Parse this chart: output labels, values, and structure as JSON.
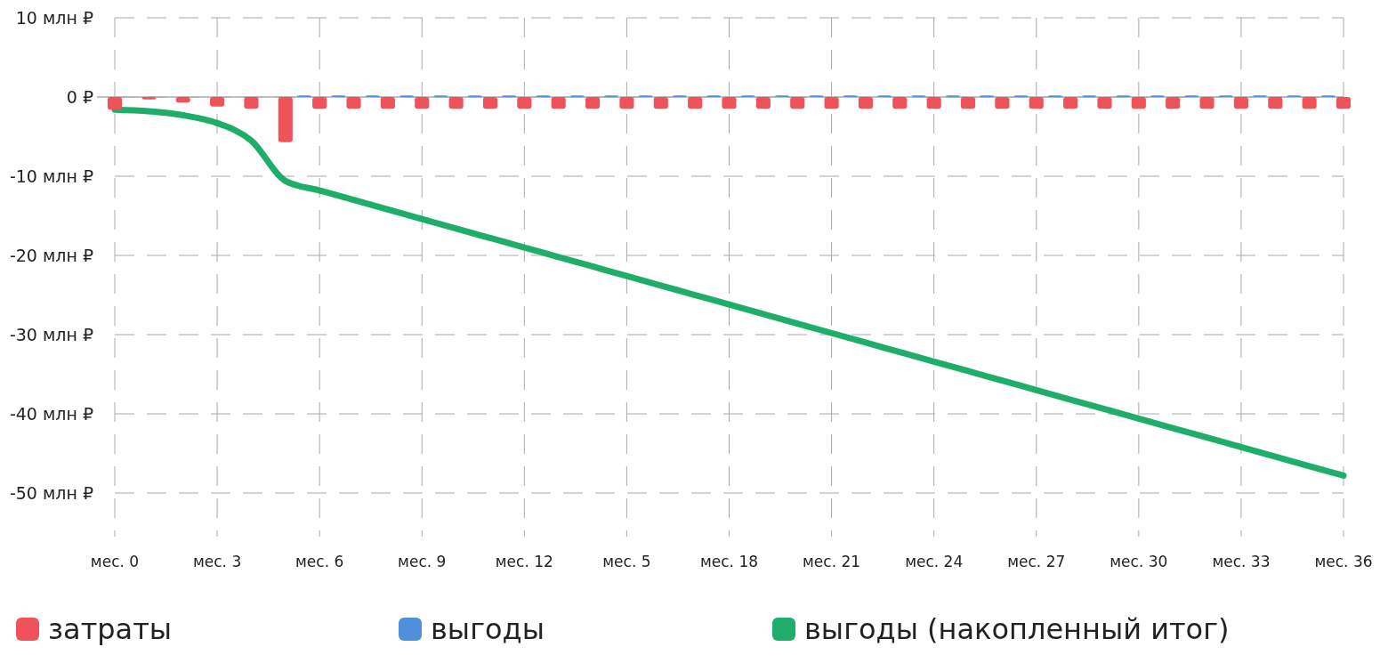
{
  "chart_data": {
    "type": "bar",
    "categories": [
      "мес. 0",
      null,
      null,
      "мес. 3",
      null,
      null,
      "мес. 6",
      null,
      null,
      "мес. 9",
      null,
      null,
      "мес. 12",
      null,
      null,
      "мес. 5",
      null,
      null,
      "мес. 18",
      null,
      null,
      "мес. 21",
      null,
      null,
      "мес. 24",
      null,
      null,
      "мес. 27",
      null,
      null,
      "мес. 30",
      null,
      null,
      "мес. 33",
      null,
      null,
      "мес. 36"
    ],
    "series": [
      {
        "name": "затраты",
        "color": "#f0525a",
        "values": [
          -1.6,
          -0.3,
          -0.7,
          -1.2,
          -1.5,
          -5.7,
          -1.5,
          -1.5,
          -1.5,
          -1.5,
          -1.5,
          -1.5,
          -1.5,
          -1.5,
          -1.5,
          -1.5,
          -1.5,
          -1.5,
          -1.5,
          -1.5,
          -1.5,
          -1.5,
          -1.5,
          -1.5,
          -1.5,
          -1.5,
          -1.5,
          -1.5,
          -1.5,
          -1.5,
          -1.5,
          -1.5,
          -1.5,
          -1.5,
          -1.5,
          -1.5,
          -1.5
        ]
      },
      {
        "name": "выгоды",
        "color": "#4f8fdc",
        "values": [
          null,
          null,
          null,
          null,
          null,
          null,
          0.2,
          0.2,
          0.2,
          0.2,
          0.2,
          0.2,
          0.2,
          0.2,
          0.2,
          0.2,
          0.2,
          0.2,
          0.2,
          0.2,
          0.2,
          0.2,
          0.2,
          0.2,
          0.2,
          0.2,
          0.2,
          0.2,
          0.2,
          0.2,
          0.2,
          0.2,
          0.2,
          0.2,
          0.2,
          0.2,
          0.2
        ]
      },
      {
        "name": "выгоды (накопленный итог)",
        "type": "line",
        "color": "#1fad6a",
        "values": [
          -1.6,
          -1.8,
          -2.3,
          -3.3,
          -5.5,
          -10.6,
          -11.8,
          -13.0,
          -14.2,
          -15.4,
          -16.6,
          -17.8,
          -19.0,
          -20.2,
          -21.4,
          -22.6,
          -23.8,
          -25.0,
          -26.2,
          -27.4,
          -28.6,
          -29.8,
          -31.0,
          -32.2,
          -33.4,
          -34.6,
          -35.8,
          -37.0,
          -38.2,
          -39.4,
          -40.6,
          -41.8,
          -43.0,
          -44.2,
          -45.4,
          -46.6,
          -47.8
        ]
      }
    ],
    "ylim": [
      -55.5,
      10
    ],
    "yticks": [
      {
        "value": 10,
        "label": "10 млн ₽"
      },
      {
        "value": 0,
        "label": "0 ₽"
      },
      {
        "value": -10,
        "label": "-10 млн ₽"
      },
      {
        "value": -20,
        "label": "-20 млн ₽"
      },
      {
        "value": -30,
        "label": "-30 млн ₽"
      },
      {
        "value": -40,
        "label": "-40 млн ₽"
      },
      {
        "value": -50,
        "label": "-50 млн ₽"
      }
    ],
    "grid": true,
    "legend": "bottom"
  }
}
